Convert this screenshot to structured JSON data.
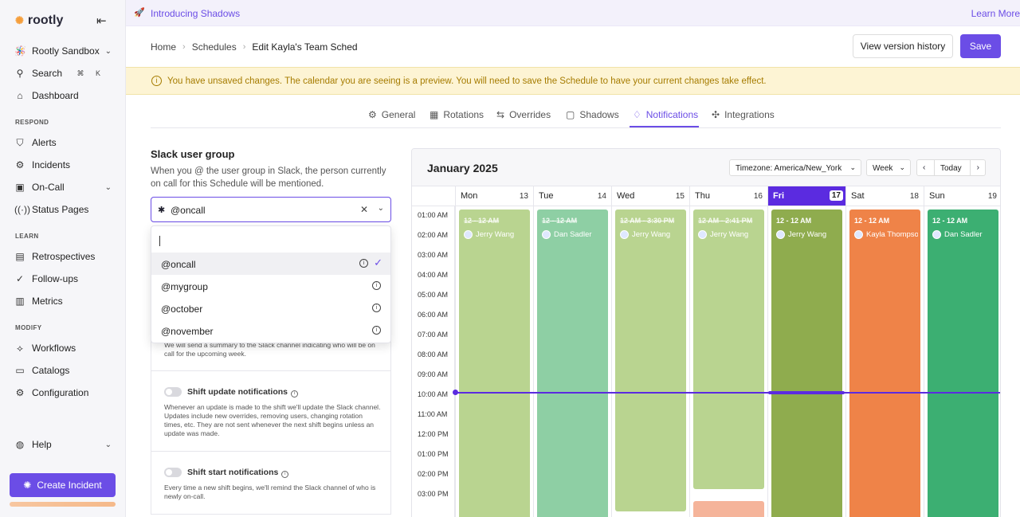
{
  "app": {
    "name": "rootly"
  },
  "sidebar": {
    "org": "Rootly Sandbox",
    "search": {
      "label": "Search",
      "shortcut": "⌘ K"
    },
    "dashboard": "Dashboard",
    "sections": [
      {
        "title": "RESPOND",
        "items": [
          "Alerts",
          "Incidents",
          "On-Call",
          "Status Pages"
        ]
      },
      {
        "title": "LEARN",
        "items": [
          "Retrospectives",
          "Follow-ups",
          "Metrics"
        ]
      },
      {
        "title": "MODIFY",
        "items": [
          "Workflows",
          "Catalogs",
          "Configuration"
        ]
      }
    ],
    "help": "Help",
    "create_incident": "Create Incident"
  },
  "banner": {
    "title": "Introducing Shadows",
    "link": "Learn More"
  },
  "breadcrumb": [
    "Home",
    "Schedules",
    "Edit Kayla's Team Sched"
  ],
  "header": {
    "history_button": "View version history",
    "save_button": "Save"
  },
  "warning": "You have unsaved changes. The calendar you are seeing is a preview. You will need to save the Schedule to have your current changes take effect.",
  "tabs": [
    {
      "label": "General",
      "icon": "gear-icon"
    },
    {
      "label": "Rotations",
      "icon": "calendar-icon"
    },
    {
      "label": "Overrides",
      "icon": "override-icon"
    },
    {
      "label": "Shadows",
      "icon": "ghost-icon"
    },
    {
      "label": "Notifications",
      "icon": "bell-icon",
      "active": true
    },
    {
      "label": "Integrations",
      "icon": "puzzle-icon"
    }
  ],
  "notifications": {
    "title": "Slack user group",
    "description": "When you @ the user group in Slack, the person currently on call for this Schedule will be mentioned.",
    "selected": "@oncall",
    "search_value": "",
    "options": [
      "@oncall",
      "@mygroup",
      "@october",
      "@november"
    ],
    "cards": [
      {
        "title": "",
        "desc": "We will send a summary to the Slack channel indicating who will be on call for the upcoming week."
      },
      {
        "title": "Shift update notifications",
        "desc": "Whenever an update is made to the shift we'll update the Slack channel. Updates include new overrides, removing users, changing rotation times, etc. They are not sent whenever the next shift begins unless an update was made."
      },
      {
        "title": "Shift start notifications",
        "desc": "Every time a new shift begins, we'll remind the Slack channel of who is newly on-call."
      }
    ]
  },
  "calendar": {
    "month": "January 2025",
    "timezone": "Timezone: America/New_York",
    "view": "Week",
    "today_button": "Today",
    "hours": [
      "01:00 AM",
      "02:00 AM",
      "03:00 AM",
      "04:00 AM",
      "05:00 AM",
      "06:00 AM",
      "07:00 AM",
      "08:00 AM",
      "09:00 AM",
      "10:00 AM",
      "11:00 AM",
      "12:00 PM",
      "01:00 PM",
      "02:00 PM",
      "03:00 PM"
    ],
    "days": [
      {
        "name": "Mon",
        "date": "13"
      },
      {
        "name": "Tue",
        "date": "14"
      },
      {
        "name": "Wed",
        "date": "15"
      },
      {
        "name": "Thu",
        "date": "16"
      },
      {
        "name": "Fri",
        "date": "17",
        "today": true
      },
      {
        "name": "Sat",
        "date": "18"
      },
      {
        "name": "Sun",
        "date": "19"
      }
    ],
    "shifts": [
      {
        "time": "12 - 12 AM",
        "user": "Jerry Wang",
        "color": "#b9d490",
        "past": true
      },
      {
        "time": "12 - 12 AM",
        "user": "Dan Sadler",
        "color": "#8ecfa4",
        "past": true
      },
      {
        "time": "12 AM - 3:30 PM",
        "user": "Jerry Wang",
        "color": "#b9d490",
        "past": true
      },
      {
        "time": "12 AM - 2:41 PM",
        "user": "Jerry Wang",
        "color": "#b9d490",
        "past": true
      },
      {
        "time": "12 - 12 AM",
        "user": "Jerry Wang",
        "color": "#8fac4e",
        "past": false
      },
      {
        "time": "12 - 12 AM",
        "user": "Kayla Thompson",
        "color": "#ef8348",
        "past": false
      },
      {
        "time": "12 - 12 AM",
        "user": "Dan Sadler",
        "color": "#3caf72",
        "past": false
      }
    ],
    "extra_shift_color": "#f5b49a"
  },
  "colors": {
    "accent": "#6b4de6",
    "warning_text": "#a67c00",
    "warning_bg": "#fdf4d4"
  }
}
